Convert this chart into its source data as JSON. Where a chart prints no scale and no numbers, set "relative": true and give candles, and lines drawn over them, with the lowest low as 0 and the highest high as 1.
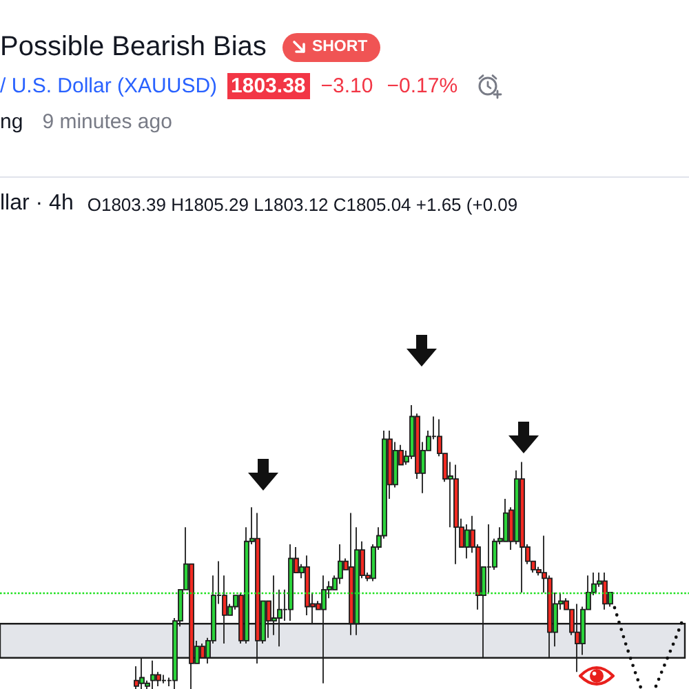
{
  "chart_data": {
    "type": "candlestick",
    "title": "Possible Bearish Bias",
    "subtitle": "/ U.S. Dollar (XAUUSD)",
    "annotations": [
      "SHORT",
      "1803.38",
      "−3.10",
      "−0.17%",
      "ng",
      "9 minutes ago",
      "llar · 4h",
      "O1803.39 H1805.29 L1803.12 C1805.04 +1.65 (+0.09"
    ],
    "relative": true,
    "categories": [
      null,
      null,
      null,
      null,
      null,
      null,
      null,
      null,
      null,
      null,
      null,
      null,
      null,
      null,
      null,
      null,
      null,
      null,
      null,
      null,
      null,
      null,
      null,
      null,
      null,
      null,
      null,
      null,
      null,
      null,
      null,
      null,
      null,
      null,
      null,
      null,
      null,
      null,
      null,
      null,
      null,
      null,
      null,
      null,
      null,
      null,
      null,
      null,
      null,
      null,
      null,
      null,
      null,
      null,
      null,
      null,
      null,
      null,
      null,
      null,
      null,
      null,
      null,
      null,
      null,
      null,
      null,
      null,
      null,
      null,
      null,
      null,
      null,
      null,
      null,
      null,
      null,
      null,
      null,
      null,
      null,
      null,
      null,
      null,
      null,
      null,
      null
    ],
    "ohlc": [
      [
        0.03,
        0.08,
        0,
        0.01
      ],
      [
        0.02,
        0.11,
        0,
        0.04
      ],
      [
        0.01,
        0.03,
        0,
        0.02
      ],
      [
        0.03,
        0.1,
        0,
        0.05
      ],
      [
        0.05,
        0.06,
        0.01,
        0.03
      ],
      [
        0.03,
        0.05,
        0.02,
        0.03
      ],
      [
        0.03,
        0.04,
        0.01,
        0.03
      ],
      [
        0.03,
        0.25,
        0,
        0.24
      ],
      [
        0.24,
        0.35,
        0.22,
        0.35
      ],
      [
        0.35,
        0.57,
        0.35,
        0.44
      ],
      [
        0.44,
        0.44,
        0,
        0.09
      ],
      [
        0.09,
        0.17,
        0.09,
        0.15
      ],
      [
        0.15,
        0.16,
        0.11,
        0.11
      ],
      [
        0.11,
        0.18,
        0.09,
        0.17
      ],
      [
        0.17,
        0.4,
        0.16,
        0.33
      ],
      [
        0.33,
        0.45,
        0.3,
        0.33
      ],
      [
        0.33,
        0.4,
        0.16,
        0.26
      ],
      [
        0.26,
        0.3,
        0.26,
        0.29
      ],
      [
        0.29,
        0.33,
        0.28,
        0.33
      ],
      [
        0.33,
        0.34,
        0.16,
        0.17
      ],
      [
        0.17,
        0.57,
        0.16,
        0.52
      ],
      [
        0.52,
        0.64,
        0.51,
        0.53
      ],
      [
        0.53,
        0.62,
        0.09,
        0.17
      ],
      [
        0.17,
        0.31,
        0.16,
        0.31
      ],
      [
        0.31,
        0.31,
        0.18,
        0.24
      ],
      [
        0.24,
        0.4,
        0.19,
        0.25
      ],
      [
        0.25,
        0.35,
        0.15,
        0.28
      ],
      [
        0.28,
        0.35,
        0.24,
        0.28
      ],
      [
        0.28,
        0.51,
        0.24,
        0.46
      ],
      [
        0.46,
        0.5,
        0.41,
        0.41
      ],
      [
        0.41,
        0.44,
        0.39,
        0.43
      ],
      [
        0.43,
        0.47,
        0.26,
        0.29
      ],
      [
        0.3,
        0.34,
        0.23,
        0.29
      ],
      [
        0.3,
        0.31,
        0.28,
        0.28
      ],
      [
        0.28,
        0.4,
        0.02,
        0.35
      ],
      [
        0.35,
        0.38,
        0.32,
        0.36
      ],
      [
        0.35,
        0.4,
        0.35,
        0.39
      ],
      [
        0.39,
        0.51,
        0.37,
        0.45
      ],
      [
        0.45,
        0.46,
        0.42,
        0.42
      ],
      [
        0.43,
        0.62,
        0.19,
        0.23
      ],
      [
        0.23,
        0.57,
        0.19,
        0.49
      ],
      [
        0.49,
        0.52,
        0.39,
        0.4
      ],
      [
        0.4,
        0.41,
        0.38,
        0.39
      ],
      [
        0.39,
        0.51,
        0.38,
        0.5
      ],
      [
        0.5,
        0.57,
        0.49,
        0.54
      ],
      [
        0.54,
        0.91,
        0.53,
        0.88
      ],
      [
        0.88,
        0.91,
        0.67,
        0.72
      ],
      [
        0.72,
        0.87,
        0.71,
        0.84
      ],
      [
        0.84,
        0.86,
        0.79,
        0.79
      ],
      [
        0.8,
        0.84,
        0.79,
        0.82
      ],
      [
        0.82,
        1,
        0.81,
        0.96
      ],
      [
        0.96,
        0.97,
        0.74,
        0.76
      ],
      [
        0.76,
        0.87,
        0.69,
        0.84
      ],
      [
        0.84,
        0.91,
        0.84,
        0.89
      ],
      [
        0.89,
        0.96,
        0.88,
        0.89
      ],
      [
        0.89,
        0.95,
        0.82,
        0.83
      ],
      [
        0.83,
        0.83,
        0.73,
        0.74
      ],
      [
        0.74,
        0.8,
        0.57,
        0.75
      ],
      [
        0.74,
        0.79,
        0.44,
        0.57
      ],
      [
        0.57,
        0.6,
        0.5,
        0.5
      ],
      [
        0.5,
        0.58,
        0.46,
        0.56
      ],
      [
        0.56,
        0.61,
        0.48,
        0.5
      ],
      [
        0.5,
        0.51,
        0.28,
        0.33
      ],
      [
        0.33,
        0.43,
        0.11,
        0.43
      ],
      [
        0.43,
        0.58,
        0.34,
        0.43
      ],
      [
        0.43,
        0.53,
        0.42,
        0.52
      ],
      [
        0.52,
        0.57,
        0.51,
        0.53
      ],
      [
        0.52,
        0.67,
        0.52,
        0.62
      ],
      [
        0.63,
        0.64,
        0.49,
        0.52
      ],
      [
        0.52,
        0.77,
        0.51,
        0.74
      ],
      [
        0.74,
        0.8,
        0.34,
        0.5
      ],
      [
        0.5,
        0.51,
        0.44,
        0.45
      ],
      [
        0.45,
        0.45,
        0.41,
        0.42
      ],
      [
        0.42,
        0.43,
        0.4,
        0.41
      ],
      [
        0.41,
        0.54,
        0.34,
        0.39
      ],
      [
        0.39,
        0.4,
        0.11,
        0.2
      ],
      [
        0.2,
        0.34,
        0.15,
        0.3
      ],
      [
        0.3,
        0.34,
        0.28,
        0.31
      ],
      [
        0.31,
        0.32,
        0.28,
        0.28
      ],
      [
        0.28,
        0.28,
        0.19,
        0.2
      ],
      [
        0.2,
        0.3,
        0.06,
        0.16
      ],
      [
        0.16,
        0.29,
        0.12,
        0.28
      ],
      [
        0.28,
        0.4,
        0.28,
        0.34
      ],
      [
        0.34,
        0.41,
        0.33,
        0.37
      ],
      [
        0.37,
        0.41,
        0.36,
        0.38
      ],
      [
        0.38,
        0.41,
        0.28,
        0.3
      ],
      [
        0.3,
        0.34,
        0.29,
        0.34
      ]
    ],
    "colors": [
      "#f22a22",
      "#2bd43b",
      "#2bd43b",
      "#2bd43b",
      "#f22a22",
      "#1c1c1c",
      "#1c1c1c",
      "#2bd43b",
      "#2bd43b",
      "#2bd43b",
      "#f22a22",
      "#2bd43b",
      "#f22a22",
      "#2bd43b",
      "#2bd43b",
      "#1c1c1c",
      "#f22a22",
      "#2bd43b",
      "#2bd43b",
      "#f22a22",
      "#2bd43b",
      "#2bd43b",
      "#f22a22",
      "#2bd43b",
      "#f22a22",
      "#2bd43b",
      "#2bd43b",
      "#1c1c1c",
      "#2bd43b",
      "#f22a22",
      "#2bd43b",
      "#f22a22",
      "#f22a22",
      "#f22a22",
      "#2bd43b",
      "#2bd43b",
      "#2bd43b",
      "#2bd43b",
      "#f22a22",
      "#f22a22",
      "#2bd43b",
      "#f22a22",
      "#f22a22",
      "#2bd43b",
      "#2bd43b",
      "#2bd43b",
      "#f22a22",
      "#2bd43b",
      "#f22a22",
      "#2bd43b",
      "#2bd43b",
      "#f22a22",
      "#2bd43b",
      "#2bd43b",
      "#1c1c1c",
      "#f22a22",
      "#f22a22",
      "#2bd43b",
      "#f22a22",
      "#f22a22",
      "#2bd43b",
      "#f22a22",
      "#f22a22",
      "#2bd43b",
      "#1c1c1c",
      "#2bd43b",
      "#2bd43b",
      "#2bd43b",
      "#f22a22",
      "#2bd43b",
      "#f22a22",
      "#f22a22",
      "#f22a22",
      "#f22a22",
      "#f22a22",
      "#f22a22",
      "#2bd43b",
      "#2bd43b",
      "#f22a22",
      "#f22a22",
      "#f22a22",
      "#2bd43b",
      "#2bd43b",
      "#2bd43b",
      "#2bd43b",
      "#f22a22",
      "#2bd43b"
    ],
    "ref_lines": [
      {
        "axis": "y",
        "value": 0.34,
        "color": "#1ee01e",
        "line_style": "dotted"
      }
    ],
    "bands": [
      {
        "axis": "y",
        "from": 0.11,
        "to": 0.23,
        "color": "#e3e5ea"
      }
    ]
  }
}
